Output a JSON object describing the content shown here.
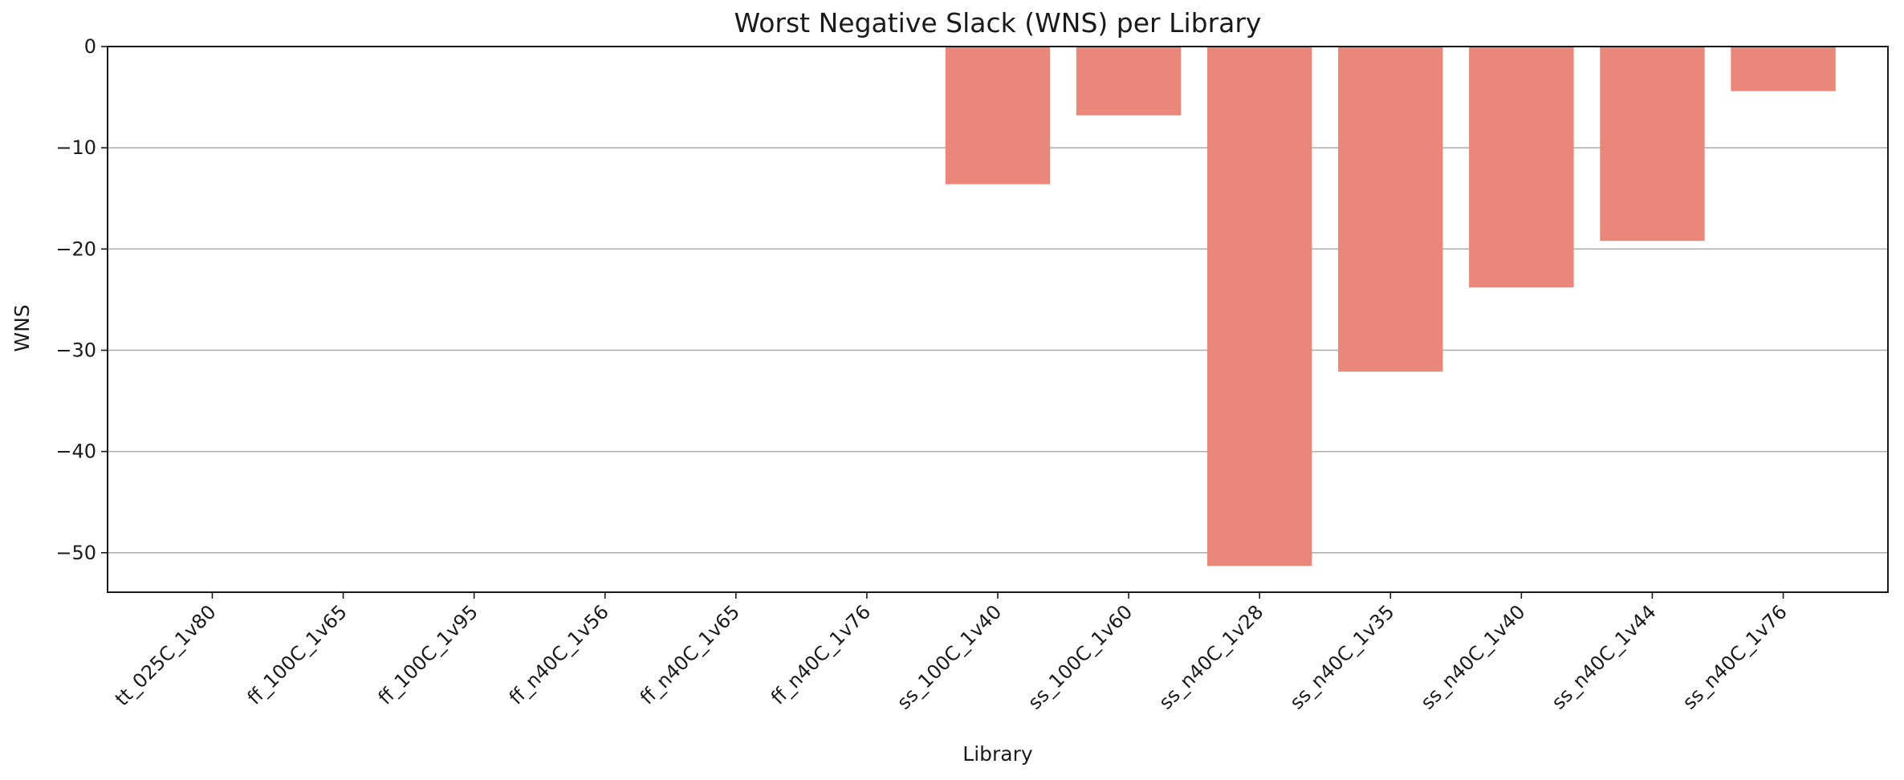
{
  "chart_data": {
    "type": "bar",
    "title": "Worst Negative Slack (WNS) per Library",
    "xlabel": "Library",
    "ylabel": "WNS",
    "categories": [
      "tt_025C_1v80",
      "ff_100C_1v65",
      "ff_100C_1v95",
      "ff_n40C_1v56",
      "ff_n40C_1v65",
      "ff_n40C_1v76",
      "ss_100C_1v40",
      "ss_100C_1v60",
      "ss_n40C_1v28",
      "ss_n40C_1v35",
      "ss_n40C_1v40",
      "ss_n40C_1v44",
      "ss_n40C_1v76"
    ],
    "values": [
      0,
      0,
      0,
      0,
      0,
      0,
      -13.6,
      -6.8,
      -51.3,
      -32.1,
      -23.8,
      -19.2,
      -4.4
    ],
    "ylim": [
      -53.9,
      0
    ],
    "yticks": [
      0,
      -10,
      -20,
      -30,
      -40,
      -50
    ],
    "ytick_labels": [
      "0",
      "−10",
      "−20",
      "−30",
      "−40",
      "−50"
    ],
    "grid": "y",
    "bar_color": "#e9877a"
  }
}
